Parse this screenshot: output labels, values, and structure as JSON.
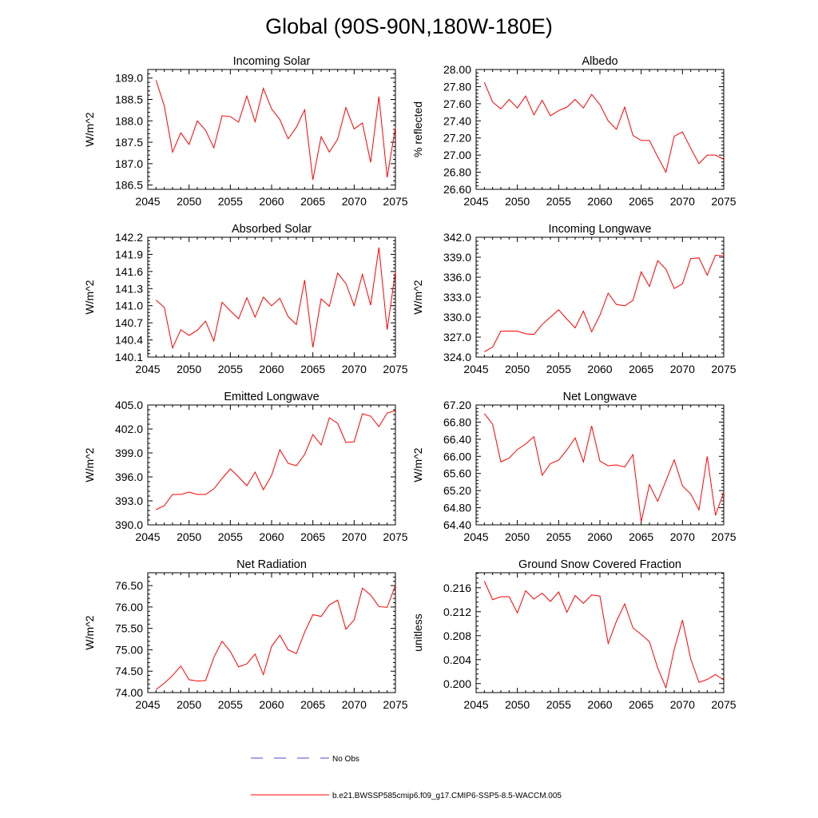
{
  "figure": {
    "title": "Global (90S-90N,180W-180E)",
    "legend": [
      {
        "label": "No Obs",
        "color": "#4b4bd6",
        "style": "dashed"
      },
      {
        "label": "b.e21.BWSSP585cmip6.f09_g17.CMIP6-SSP5-8.5-WACCM.005",
        "color": "#ff0000",
        "style": "solid"
      }
    ]
  },
  "chart_data": [
    {
      "type": "line",
      "title": "Incoming Solar",
      "xlabel": "",
      "ylabel": "W/m^2",
      "xlim": [
        2045,
        2075
      ],
      "ylim": [
        186.4,
        189.2
      ],
      "xticks": [
        2045,
        2050,
        2055,
        2060,
        2065,
        2070,
        2075
      ],
      "xtick_labels": [
        "2045",
        "2050",
        "2055",
        "2060",
        "2065",
        "2070",
        "2075"
      ],
      "yticks": [
        186.5,
        187.0,
        187.5,
        188.0,
        188.5,
        189.0
      ],
      "ytick_labels": [
        "186.5",
        "187.0",
        "187.5",
        "188.0",
        "188.5",
        "189.0"
      ],
      "grid": false,
      "x": [
        2046,
        2047,
        2048,
        2049,
        2050,
        2051,
        2052,
        2053,
        2054,
        2055,
        2056,
        2057,
        2058,
        2059,
        2060,
        2061,
        2062,
        2063,
        2064,
        2065,
        2066,
        2067,
        2068,
        2069,
        2070,
        2071,
        2072,
        2073,
        2074,
        2075
      ],
      "series": [
        {
          "name": "b.e21.BWSSP585cmip6.f09_g17.CMIP6-SSP5-8.5-WACCM.005",
          "color": "#ff0000",
          "values": [
            188.95,
            188.35,
            187.27,
            187.72,
            187.45,
            188.0,
            187.78,
            187.37,
            188.12,
            188.1,
            187.97,
            188.58,
            187.98,
            188.76,
            188.28,
            188.03,
            187.58,
            187.85,
            188.26,
            186.62,
            187.63,
            187.27,
            187.57,
            188.31,
            187.81,
            187.95,
            187.03,
            188.57,
            186.68,
            187.85
          ]
        }
      ]
    },
    {
      "type": "line",
      "title": "Albedo",
      "xlabel": "",
      "ylabel": "% reflected",
      "xlim": [
        2045,
        2075
      ],
      "ylim": [
        26.6,
        28.0
      ],
      "xticks": [
        2045,
        2050,
        2055,
        2060,
        2065,
        2070,
        2075
      ],
      "xtick_labels": [
        "2045",
        "2050",
        "2055",
        "2060",
        "2065",
        "2070",
        "2075"
      ],
      "yticks": [
        26.6,
        26.8,
        27.0,
        27.2,
        27.4,
        27.6,
        27.8,
        28.0
      ],
      "ytick_labels": [
        "26.60",
        "26.80",
        "27.00",
        "27.20",
        "27.40",
        "27.60",
        "27.80",
        "28.00"
      ],
      "grid": false,
      "x": [
        2046,
        2047,
        2048,
        2049,
        2050,
        2051,
        2052,
        2053,
        2054,
        2055,
        2056,
        2057,
        2058,
        2059,
        2060,
        2061,
        2062,
        2063,
        2064,
        2065,
        2066,
        2067,
        2068,
        2069,
        2070,
        2071,
        2072,
        2073,
        2074,
        2075
      ],
      "series": [
        {
          "name": "b.e21.BWSSP585cmip6.f09_g17.CMIP6-SSP5-8.5-WACCM.005",
          "color": "#ff0000",
          "values": [
            27.85,
            27.62,
            27.54,
            27.65,
            27.55,
            27.69,
            27.47,
            27.64,
            27.46,
            27.52,
            27.56,
            27.65,
            27.55,
            27.71,
            27.59,
            27.4,
            27.3,
            27.56,
            27.23,
            27.17,
            27.17,
            26.98,
            26.8,
            27.22,
            27.27,
            27.08,
            26.9,
            27.0,
            27.0,
            26.95
          ]
        }
      ]
    },
    {
      "type": "line",
      "title": "Absorbed Solar",
      "xlabel": "",
      "ylabel": "W/m^2",
      "xlim": [
        2045,
        2075
      ],
      "ylim": [
        140.1,
        142.2
      ],
      "xticks": [
        2045,
        2050,
        2055,
        2060,
        2065,
        2070,
        2075
      ],
      "xtick_labels": [
        "2045",
        "2050",
        "2055",
        "2060",
        "2065",
        "2070",
        "2075"
      ],
      "yticks": [
        140.1,
        140.4,
        140.7,
        141.0,
        141.3,
        141.6,
        141.9,
        142.2
      ],
      "ytick_labels": [
        "140.1",
        "140.4",
        "140.7",
        "141.0",
        "141.3",
        "141.6",
        "141.9",
        "142.2"
      ],
      "grid": false,
      "x": [
        2046,
        2047,
        2048,
        2049,
        2050,
        2051,
        2052,
        2053,
        2054,
        2055,
        2056,
        2057,
        2058,
        2059,
        2060,
        2061,
        2062,
        2063,
        2064,
        2065,
        2066,
        2067,
        2068,
        2069,
        2070,
        2071,
        2072,
        2073,
        2074,
        2075
      ],
      "series": [
        {
          "name": "b.e21.BWSSP585cmip6.f09_g17.CMIP6-SSP5-8.5-WACCM.005",
          "color": "#ff0000",
          "values": [
            141.1,
            140.97,
            140.26,
            140.58,
            140.48,
            140.57,
            140.73,
            140.38,
            141.06,
            140.91,
            140.77,
            141.14,
            140.8,
            141.15,
            141.0,
            141.13,
            140.81,
            140.67,
            141.45,
            140.27,
            141.12,
            140.99,
            141.57,
            141.39,
            141.0,
            141.55,
            141.01,
            142.02,
            140.58,
            141.6
          ]
        }
      ]
    },
    {
      "type": "line",
      "title": "Incoming Longwave",
      "xlabel": "",
      "ylabel": "W/m^2",
      "xlim": [
        2045,
        2075
      ],
      "ylim": [
        324.0,
        342.0
      ],
      "xticks": [
        2045,
        2050,
        2055,
        2060,
        2065,
        2070,
        2075
      ],
      "xtick_labels": [
        "2045",
        "2050",
        "2055",
        "2060",
        "2065",
        "2070",
        "2075"
      ],
      "yticks": [
        324.0,
        327.0,
        330.0,
        333.0,
        336.0,
        339.0,
        342.0
      ],
      "ytick_labels": [
        "324.0",
        "327.0",
        "330.0",
        "333.0",
        "336.0",
        "339.0",
        "342.0"
      ],
      "grid": false,
      "x": [
        2046,
        2047,
        2048,
        2049,
        2050,
        2051,
        2052,
        2053,
        2054,
        2055,
        2056,
        2057,
        2058,
        2059,
        2060,
        2061,
        2062,
        2063,
        2064,
        2065,
        2066,
        2067,
        2068,
        2069,
        2070,
        2071,
        2072,
        2073,
        2074,
        2075
      ],
      "series": [
        {
          "name": "b.e21.BWSSP585cmip6.f09_g17.CMIP6-SSP5-8.5-WACCM.005",
          "color": "#ff0000",
          "values": [
            324.8,
            325.5,
            327.9,
            327.9,
            327.9,
            327.5,
            327.4,
            328.9,
            330.0,
            331.1,
            329.7,
            328.4,
            330.9,
            327.8,
            330.3,
            333.6,
            331.9,
            331.7,
            332.5,
            336.8,
            334.6,
            338.5,
            337.2,
            334.3,
            335.0,
            338.8,
            338.9,
            336.3,
            339.3,
            339.2
          ]
        }
      ]
    },
    {
      "type": "line",
      "title": "Emitted Longwave",
      "xlabel": "",
      "ylabel": "W/m^2",
      "xlim": [
        2045,
        2075
      ],
      "ylim": [
        390.0,
        405.0
      ],
      "xticks": [
        2045,
        2050,
        2055,
        2060,
        2065,
        2070,
        2075
      ],
      "xtick_labels": [
        "2045",
        "2050",
        "2055",
        "2060",
        "2065",
        "2070",
        "2075"
      ],
      "yticks": [
        390.0,
        393.0,
        396.0,
        399.0,
        402.0,
        405.0
      ],
      "ytick_labels": [
        "390.0",
        "393.0",
        "396.0",
        "399.0",
        "402.0",
        "405.0"
      ],
      "grid": false,
      "x": [
        2046,
        2047,
        2048,
        2049,
        2050,
        2051,
        2052,
        2053,
        2054,
        2055,
        2056,
        2057,
        2058,
        2059,
        2060,
        2061,
        2062,
        2063,
        2064,
        2065,
        2066,
        2067,
        2068,
        2069,
        2070,
        2071,
        2072,
        2073,
        2074,
        2075
      ],
      "series": [
        {
          "name": "b.e21.BWSSP585cmip6.f09_g17.CMIP6-SSP5-8.5-WACCM.005",
          "color": "#ff0000",
          "values": [
            391.9,
            392.4,
            393.8,
            393.8,
            394.1,
            393.8,
            393.8,
            394.5,
            395.8,
            397.0,
            396.0,
            394.9,
            396.6,
            394.4,
            396.2,
            399.4,
            397.7,
            397.4,
            398.8,
            401.3,
            400.0,
            403.4,
            402.7,
            400.3,
            400.4,
            403.9,
            403.6,
            402.3,
            404.0,
            404.3
          ]
        }
      ]
    },
    {
      "type": "line",
      "title": "Net Longwave",
      "xlabel": "",
      "ylabel": "W/m^2",
      "xlim": [
        2045,
        2075
      ],
      "ylim": [
        64.4,
        67.2
      ],
      "xticks": [
        2045,
        2050,
        2055,
        2060,
        2065,
        2070,
        2075
      ],
      "xtick_labels": [
        "2045",
        "2050",
        "2055",
        "2060",
        "2065",
        "2070",
        "2075"
      ],
      "yticks": [
        64.4,
        64.8,
        65.2,
        65.6,
        66.0,
        66.4,
        66.8,
        67.2
      ],
      "ytick_labels": [
        "64.40",
        "64.80",
        "65.20",
        "65.60",
        "66.00",
        "66.40",
        "66.80",
        "67.20"
      ],
      "grid": false,
      "x": [
        2046,
        2047,
        2048,
        2049,
        2050,
        2051,
        2052,
        2053,
        2054,
        2055,
        2056,
        2057,
        2058,
        2059,
        2060,
        2061,
        2062,
        2063,
        2064,
        2065,
        2066,
        2067,
        2068,
        2069,
        2070,
        2071,
        2072,
        2073,
        2074,
        2075
      ],
      "series": [
        {
          "name": "b.e21.BWSSP585cmip6.f09_g17.CMIP6-SSP5-8.5-WACCM.005",
          "color": "#ff0000",
          "values": [
            67.0,
            66.75,
            65.87,
            65.96,
            66.16,
            66.29,
            66.46,
            65.56,
            65.83,
            65.91,
            66.15,
            66.43,
            65.87,
            66.71,
            65.89,
            65.78,
            65.8,
            65.75,
            66.04,
            64.47,
            65.34,
            64.95,
            65.43,
            65.92,
            65.31,
            65.12,
            64.75,
            66.0,
            64.62,
            65.17
          ]
        }
      ]
    },
    {
      "type": "line",
      "title": "Net Radiation",
      "xlabel": "",
      "ylabel": "W/m^2",
      "xlim": [
        2045,
        2075
      ],
      "ylim": [
        74.0,
        76.8
      ],
      "xticks": [
        2045,
        2050,
        2055,
        2060,
        2065,
        2070,
        2075
      ],
      "xtick_labels": [
        "2045",
        "2050",
        "2055",
        "2060",
        "2065",
        "2070",
        "2075"
      ],
      "yticks": [
        74.0,
        74.5,
        75.0,
        75.5,
        76.0,
        76.5
      ],
      "ytick_labels": [
        "74.00",
        "74.50",
        "75.00",
        "75.50",
        "76.00",
        "76.50"
      ],
      "grid": false,
      "x": [
        2046,
        2047,
        2048,
        2049,
        2050,
        2051,
        2052,
        2053,
        2054,
        2055,
        2056,
        2057,
        2058,
        2059,
        2060,
        2061,
        2062,
        2063,
        2064,
        2065,
        2066,
        2067,
        2068,
        2069,
        2070,
        2071,
        2072,
        2073,
        2074,
        2075
      ],
      "series": [
        {
          "name": "b.e21.BWSSP585cmip6.f09_g17.CMIP6-SSP5-8.5-WACCM.005",
          "color": "#ff0000",
          "values": [
            74.07,
            74.22,
            74.4,
            74.62,
            74.3,
            74.27,
            74.28,
            74.82,
            75.2,
            74.96,
            74.6,
            74.67,
            74.9,
            74.42,
            75.08,
            75.34,
            75.0,
            74.91,
            75.41,
            75.82,
            75.78,
            76.05,
            76.16,
            75.48,
            75.7,
            76.44,
            76.28,
            76.01,
            75.99,
            76.51
          ]
        }
      ]
    },
    {
      "type": "line",
      "title": "Ground Snow Covered Fraction",
      "xlabel": "",
      "ylabel": "unitless",
      "xlim": [
        2045,
        2075
      ],
      "ylim": [
        0.1985,
        0.2185
      ],
      "xticks": [
        2045,
        2050,
        2055,
        2060,
        2065,
        2070,
        2075
      ],
      "xtick_labels": [
        "2045",
        "2050",
        "2055",
        "2060",
        "2065",
        "2070",
        "2075"
      ],
      "yticks": [
        0.2,
        0.204,
        0.208,
        0.212,
        0.216
      ],
      "ytick_labels": [
        "0.200",
        "0.204",
        "0.208",
        "0.212",
        "0.216"
      ],
      "grid": false,
      "x": [
        2046,
        2047,
        2048,
        2049,
        2050,
        2051,
        2052,
        2053,
        2054,
        2055,
        2056,
        2057,
        2058,
        2059,
        2060,
        2061,
        2062,
        2063,
        2064,
        2065,
        2066,
        2067,
        2068,
        2069,
        2070,
        2071,
        2072,
        2073,
        2074,
        2075
      ],
      "series": [
        {
          "name": "b.e21.BWSSP585cmip6.f09_g17.CMIP6-SSP5-8.5-WACCM.005",
          "color": "#ff0000",
          "values": [
            0.2171,
            0.214,
            0.2145,
            0.2145,
            0.2118,
            0.2155,
            0.2141,
            0.2151,
            0.2137,
            0.2153,
            0.2119,
            0.2147,
            0.2134,
            0.2148,
            0.2146,
            0.2067,
            0.2104,
            0.2133,
            0.2093,
            0.2082,
            0.207,
            0.2026,
            0.1993,
            0.2057,
            0.2106,
            0.2041,
            0.2002,
            0.2007,
            0.2015,
            0.2006
          ]
        }
      ]
    }
  ]
}
